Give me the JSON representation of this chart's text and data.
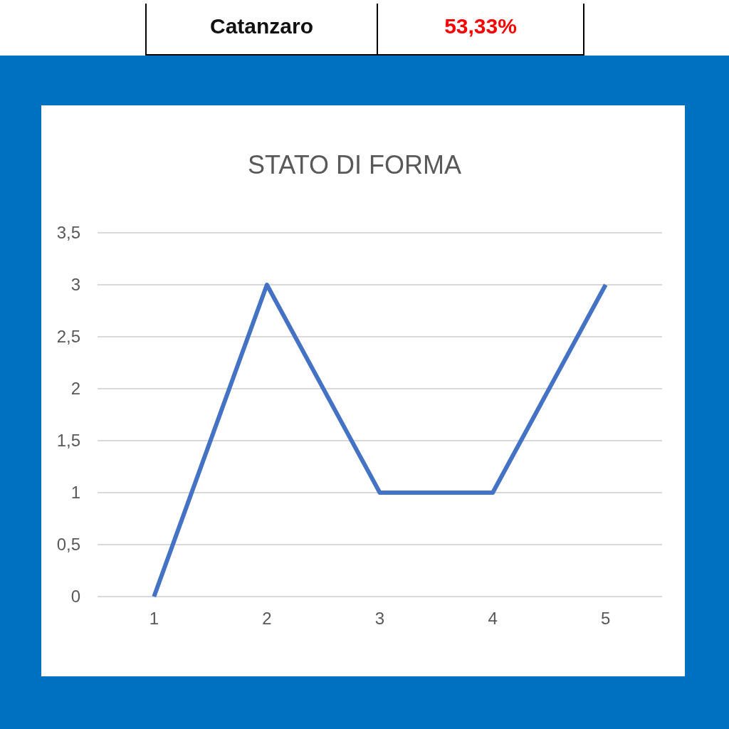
{
  "chart_data": {
    "type": "line",
    "title": "STATO DI FORMA",
    "categories": [
      "1",
      "2",
      "3",
      "4",
      "5"
    ],
    "series": [
      {
        "color": "#4472c4",
        "values": [
          0,
          3,
          1,
          1,
          3
        ]
      }
    ],
    "ylim": [
      0,
      3.5
    ],
    "yticks": [
      0,
      {
        "value": 0.5,
        "label": "0,5"
      },
      1,
      {
        "value": 1.5,
        "label": "1,5"
      },
      2,
      {
        "value": 2.5,
        "label": "2,5"
      },
      3,
      {
        "value": 3.5,
        "label": "3,5"
      }
    ],
    "grid": "y",
    "annotations": [
      "Catanzaro",
      "53,33%"
    ]
  }
}
